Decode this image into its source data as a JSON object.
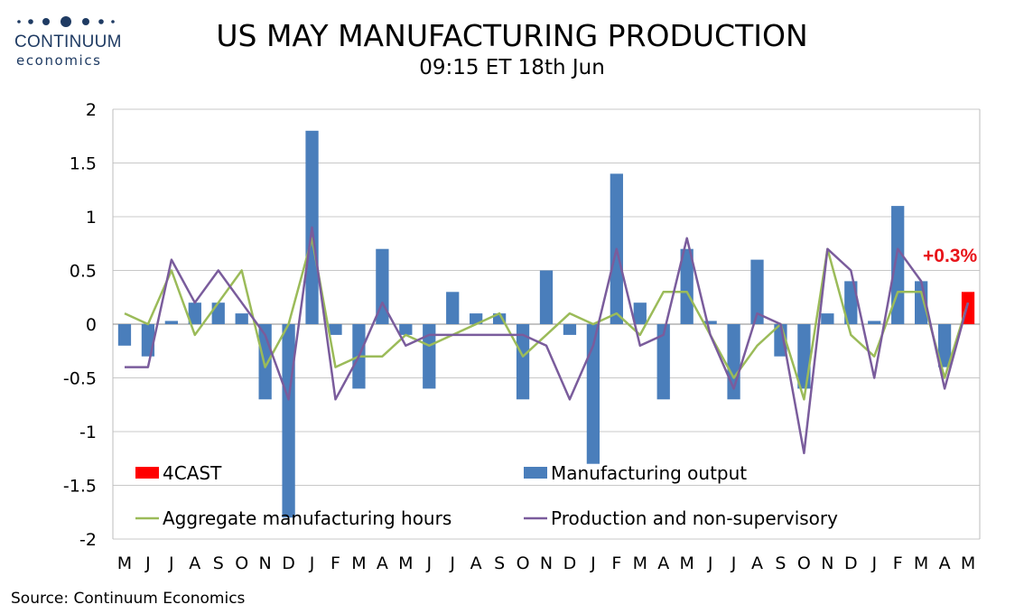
{
  "brand": {
    "name": "CONTINUUM",
    "tagline": "economics"
  },
  "title": "US MAY MANUFACTURING PRODUCTION",
  "subtitle": "09:15 ET 18th Jun",
  "source": "Source: Continuum Economics",
  "annotation": "+0.3%",
  "chart_data": {
    "type": "bar",
    "categories": [
      "M",
      "J",
      "J",
      "A",
      "S",
      "O",
      "N",
      "D",
      "J",
      "F",
      "M",
      "A",
      "M",
      "J",
      "J",
      "A",
      "S",
      "O",
      "N",
      "D",
      "J",
      "F",
      "M",
      "A",
      "M",
      "J",
      "J",
      "A",
      "S",
      "O",
      "N",
      "D",
      "J",
      "F",
      "M",
      "A",
      "M"
    ],
    "ylim": [
      -2,
      2
    ],
    "yticks": [
      2,
      1.5,
      1,
      0.5,
      0,
      -0.5,
      -1,
      -1.5,
      -2
    ],
    "ytick_labels": [
      "2",
      "1.5",
      "1",
      "0.5",
      "0",
      "-0.5",
      "-1",
      "-1.5",
      "-2"
    ],
    "grid": true,
    "series": [
      {
        "name": "Manufacturing output",
        "type": "bar",
        "color": "#4a7ebb",
        "values": [
          -0.2,
          -0.3,
          0.03,
          0.2,
          0.2,
          0.1,
          -0.7,
          -1.8,
          1.8,
          -0.1,
          -0.6,
          0.7,
          -0.1,
          -0.6,
          0.3,
          0.1,
          0.1,
          -0.7,
          0.5,
          -0.1,
          -1.3,
          1.4,
          0.2,
          -0.7,
          0.7,
          0.03,
          -0.7,
          0.6,
          -0.3,
          -0.6,
          0.1,
          0.4,
          0.03,
          1.1,
          0.4,
          -0.4,
          null
        ]
      },
      {
        "name": "4CAST",
        "type": "bar",
        "color": "#ff0000",
        "values": [
          null,
          null,
          null,
          null,
          null,
          null,
          null,
          null,
          null,
          null,
          null,
          null,
          null,
          null,
          null,
          null,
          null,
          null,
          null,
          null,
          null,
          null,
          null,
          null,
          null,
          null,
          null,
          null,
          null,
          null,
          null,
          null,
          null,
          null,
          null,
          null,
          0.3
        ]
      },
      {
        "name": "Aggregate manufacturing hours",
        "type": "line",
        "color": "#9bbb59",
        "values": [
          0.1,
          0.0,
          0.5,
          -0.1,
          0.2,
          0.5,
          -0.4,
          0.0,
          0.8,
          -0.4,
          -0.3,
          -0.3,
          -0.1,
          -0.2,
          -0.1,
          0.0,
          0.1,
          -0.3,
          -0.1,
          0.1,
          0.0,
          0.1,
          -0.1,
          0.3,
          0.3,
          -0.1,
          -0.5,
          -0.2,
          0.0,
          -0.7,
          0.7,
          -0.1,
          -0.3,
          0.3,
          0.3,
          -0.5,
          0.2
        ]
      },
      {
        "name": "Production and non-supervisory",
        "type": "line",
        "color": "#7a5c9c",
        "values": [
          -0.4,
          -0.4,
          0.6,
          0.2,
          0.5,
          0.2,
          -0.1,
          -0.7,
          0.9,
          -0.7,
          -0.3,
          0.2,
          -0.2,
          -0.1,
          -0.1,
          -0.1,
          -0.1,
          -0.1,
          -0.2,
          -0.7,
          -0.2,
          0.7,
          -0.2,
          -0.1,
          0.8,
          -0.1,
          -0.6,
          0.1,
          0.0,
          -1.2,
          0.7,
          0.5,
          -0.5,
          0.7,
          0.4,
          -0.6,
          0.2
        ]
      }
    ],
    "legend": [
      {
        "label": "4CAST",
        "kind": "box",
        "color": "#ff0000"
      },
      {
        "label": "Manufacturing output",
        "kind": "box",
        "color": "#4a7ebb"
      },
      {
        "label": "Aggregate manufacturing hours",
        "kind": "line",
        "color": "#9bbb59"
      },
      {
        "label": "Production and non-supervisory",
        "kind": "line",
        "color": "#7a5c9c"
      }
    ],
    "legend_placement": "bottom-inside"
  }
}
